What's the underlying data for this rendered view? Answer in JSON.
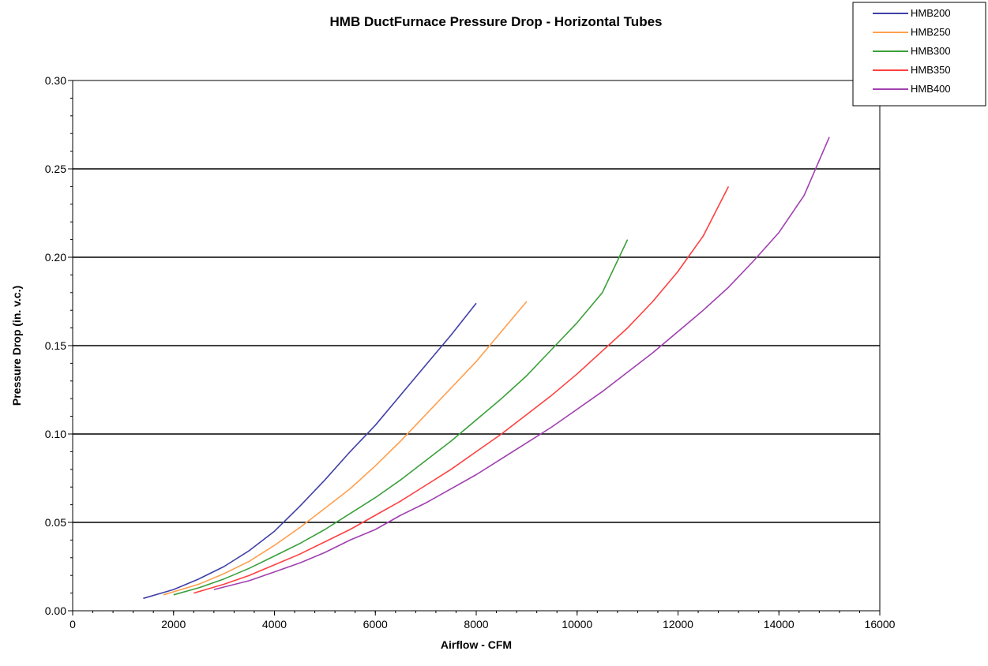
{
  "chart_data": {
    "type": "line",
    "title": "HMB DuctFurnace Pressure Drop - Horizontal Tubes",
    "xlabel": "Airflow - CFM",
    "ylabel": "Pressure Drop (in. v.c.)",
    "xlim": [
      0,
      16000
    ],
    "ylim": [
      0,
      0.3
    ],
    "x_ticks": [
      "0",
      "2000",
      "4000",
      "6000",
      "8000",
      "10000",
      "12000",
      "14000",
      "16000"
    ],
    "y_ticks": [
      "0.00",
      "0.05",
      "0.10",
      "0.15",
      "0.20",
      "0.25",
      "0.30"
    ],
    "grid": "horizontal major lines",
    "legend_position": "top-right",
    "series": [
      {
        "name": "HMB200",
        "color": "#4040a8",
        "x": [
          1400,
          2000,
          2500,
          3000,
          3500,
          4000,
          4500,
          5000,
          5500,
          6000,
          6500,
          7000,
          7500,
          8000
        ],
        "y": [
          0.007,
          0.012,
          0.018,
          0.025,
          0.034,
          0.045,
          0.059,
          0.074,
          0.09,
          0.105,
          0.122,
          0.139,
          0.156,
          0.174
        ]
      },
      {
        "name": "HMB250",
        "color": "#ff9f4f",
        "x": [
          1800,
          2500,
          3000,
          3500,
          4000,
          4500,
          5000,
          5500,
          6000,
          6500,
          7000,
          7500,
          8000,
          8500,
          9000
        ],
        "y": [
          0.009,
          0.015,
          0.021,
          0.028,
          0.037,
          0.047,
          0.058,
          0.069,
          0.082,
          0.096,
          0.111,
          0.126,
          0.141,
          0.158,
          0.175
        ]
      },
      {
        "name": "HMB300",
        "color": "#3aa03a",
        "x": [
          2000,
          2500,
          3000,
          3500,
          4000,
          4500,
          5000,
          5500,
          6000,
          6500,
          7000,
          7500,
          8000,
          8500,
          9000,
          9500,
          10000,
          10500,
          11000
        ],
        "y": [
          0.009,
          0.013,
          0.018,
          0.024,
          0.031,
          0.038,
          0.046,
          0.055,
          0.064,
          0.074,
          0.085,
          0.096,
          0.108,
          0.12,
          0.133,
          0.148,
          0.163,
          0.18,
          0.21
        ]
      },
      {
        "name": "HMB350",
        "color": "#ff4040",
        "x": [
          2400,
          3000,
          3500,
          4000,
          4500,
          5000,
          5500,
          6000,
          6500,
          7000,
          7500,
          8000,
          8500,
          9000,
          9500,
          10000,
          10500,
          11000,
          11500,
          12000,
          12500,
          13000
        ],
        "y": [
          0.01,
          0.015,
          0.02,
          0.026,
          0.032,
          0.039,
          0.046,
          0.054,
          0.062,
          0.071,
          0.08,
          0.09,
          0.1,
          0.111,
          0.122,
          0.134,
          0.147,
          0.16,
          0.175,
          0.192,
          0.212,
          0.24
        ]
      },
      {
        "name": "HMB400",
        "color": "#a040b0",
        "x": [
          2800,
          3500,
          4000,
          4500,
          5000,
          5500,
          6000,
          6500,
          7000,
          7500,
          8000,
          8500,
          9000,
          9500,
          10000,
          10500,
          11000,
          11500,
          12000,
          12500,
          13000,
          13500,
          14000,
          14500,
          15000
        ],
        "y": [
          0.012,
          0.017,
          0.022,
          0.027,
          0.033,
          0.04,
          0.046,
          0.054,
          0.061,
          0.069,
          0.077,
          0.086,
          0.095,
          0.104,
          0.114,
          0.124,
          0.135,
          0.146,
          0.158,
          0.17,
          0.183,
          0.198,
          0.214,
          0.235,
          0.268
        ]
      }
    ]
  }
}
